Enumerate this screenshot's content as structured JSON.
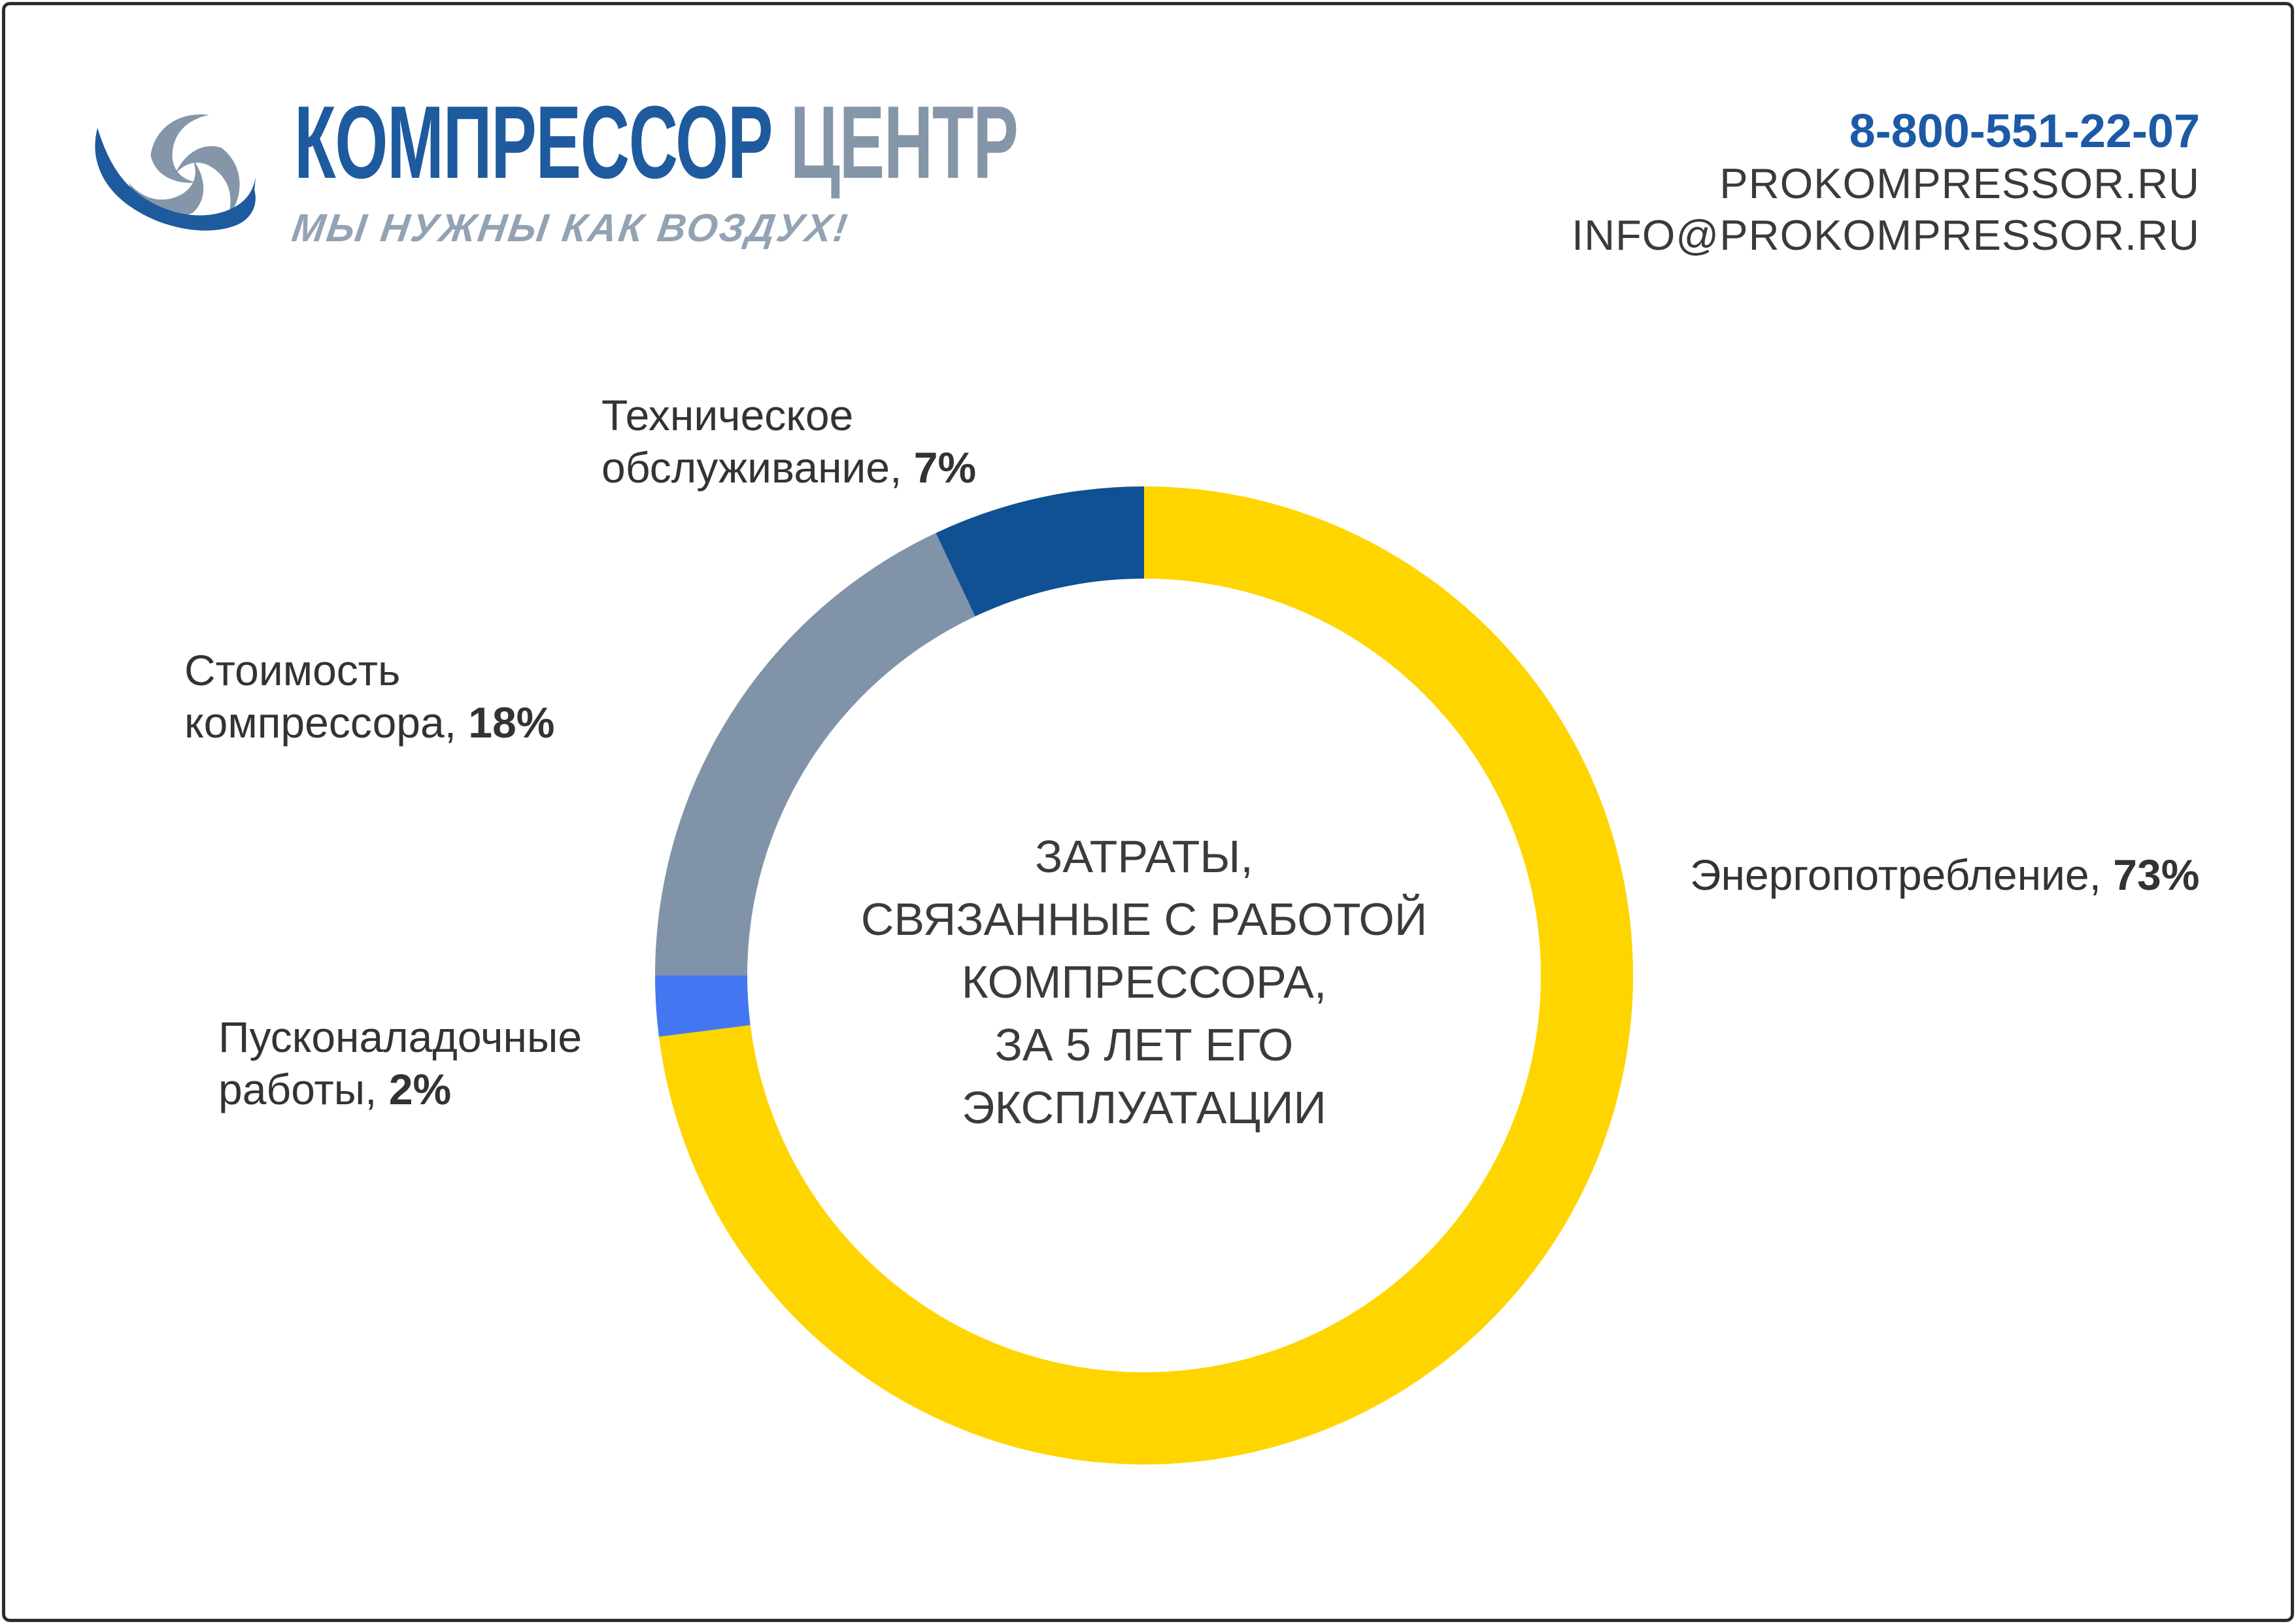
{
  "header": {
    "brand": {
      "word1": "КОМПРЕССОР",
      "word2": "ЦЕНТР",
      "slogan": "МЫ НУЖНЫ КАК ВОЗДУХ!"
    },
    "contact": {
      "phone": "8-800-551-22-07",
      "website": "PROKOMPRESSOR.RU",
      "email": "INFO@PROKOMPRESSOR.RU"
    }
  },
  "colors": {
    "brand_blue": "#1e5a9e",
    "brand_gray": "#8496a8",
    "slogan_gray": "#94a3b3",
    "phone_blue": "#1c5aa6",
    "contact_dark": "#3a3a3a",
    "text_dark": "#333333",
    "frame": "#2d2d2d",
    "slice_yellow": "#ffd500",
    "slice_light_blue": "#4377f1",
    "slice_gray": "#8093a8",
    "slice_dark_blue": "#0f5192"
  },
  "chart_data": {
    "type": "pie",
    "donut": true,
    "units": "%",
    "start_angle": "top",
    "direction": "clockwise",
    "title": "ЗАТРАТЫ, СВЯЗАННЫЕ С РАБОТОЙ КОМПРЕССОРА, ЗА 5 ЛЕТ ЕГО ЭКСПЛУАТАЦИИ",
    "center_lines": [
      "ЗАТРАТЫ,",
      "СВЯЗАННЫЕ С РАБОТОЙ",
      "КОМПРЕССОРА,",
      "ЗА 5 ЛЕТ ЕГО",
      "ЭКСПЛУАТАЦИИ"
    ],
    "slices": [
      {
        "id": "energy",
        "label": "Энергопотребление",
        "value": 73,
        "pct_text": "73%",
        "line1": "Энергопотребление,",
        "color": "#ffd500"
      },
      {
        "id": "commissioning",
        "label": "Пусконаладочные работы",
        "value": 2,
        "pct_text": "2%",
        "line1": "Пусконаладочные",
        "line2": "работы,",
        "color": "#4377f1"
      },
      {
        "id": "compressor-cost",
        "label": "Стоимость компрессора",
        "value": 18,
        "pct_text": "18%",
        "line1": "Стоимость",
        "line2": "компрессора,",
        "color": "#8093a8"
      },
      {
        "id": "maintenance",
        "label": "Техническое обслуживание",
        "value": 7,
        "pct_text": "7%",
        "line1": "Техническое",
        "line2": "обслуживание,",
        "color": "#0f5192"
      }
    ]
  }
}
